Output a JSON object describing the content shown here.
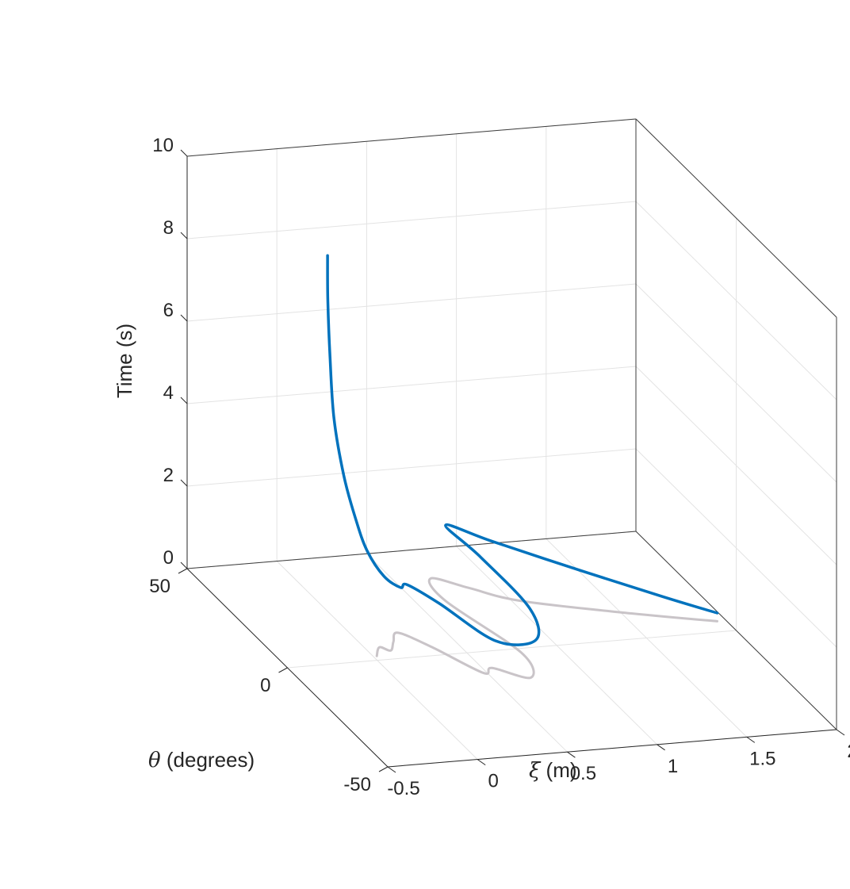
{
  "chart_data": {
    "type": "line",
    "projection": "3d",
    "title": "",
    "axes": {
      "x": {
        "label": "ξ (m)",
        "label_symbol": "ξ",
        "label_rest": " (m)",
        "range": [
          -0.5,
          2
        ],
        "ticks": [
          -0.5,
          0,
          0.5,
          1,
          1.5,
          2
        ],
        "tick_labels": [
          "-0.5",
          "0",
          "0.5",
          "1",
          "1.5",
          "2"
        ]
      },
      "y": {
        "label": "θ (degrees)",
        "label_symbol": "θ",
        "label_rest": " (degrees)",
        "range": [
          -50,
          50
        ],
        "ticks": [
          -50,
          0,
          50
        ],
        "tick_labels": [
          "-50",
          "0",
          "50"
        ]
      },
      "z": {
        "label": "Time (s)",
        "range": [
          0,
          10
        ],
        "ticks": [
          0,
          2,
          4,
          6,
          8,
          10
        ],
        "tick_labels": [
          "0",
          "2",
          "4",
          "6",
          "8",
          "10"
        ]
      }
    },
    "grid": true,
    "colors": {
      "trajectory": "#0072bd",
      "projection": "#c9c4c8",
      "axes": "#262626",
      "grid": "#e3e3e3",
      "box": "#3c3c3c"
    },
    "series": [
      {
        "kind": "trajectory",
        "points": [
          [
            1.95,
            5,
            0.2
          ],
          [
            1.7,
            10,
            0.45
          ],
          [
            1.35,
            18,
            0.8
          ],
          [
            0.95,
            28,
            1.2
          ],
          [
            0.75,
            33,
            1.42
          ],
          [
            0.8,
            20,
            1.25
          ],
          [
            0.85,
            0,
            0.95
          ],
          [
            0.75,
            -12,
            0.8
          ],
          [
            0.55,
            -10,
            0.75
          ],
          [
            0.4,
            5,
            1.0
          ],
          [
            0.3,
            12,
            1.15
          ],
          [
            0.22,
            8,
            1.3
          ],
          [
            0.15,
            10,
            1.5
          ],
          [
            0.1,
            14,
            1.95
          ],
          [
            0.08,
            18,
            2.55
          ],
          [
            0.06,
            22,
            3.4
          ],
          [
            0.05,
            26,
            4.6
          ],
          [
            0.05,
            28,
            6.0
          ],
          [
            0.06,
            30,
            7.3
          ],
          [
            0.07,
            31,
            8.3
          ]
        ]
      },
      {
        "kind": "floor-projection",
        "points": [
          [
            1.95,
            5,
            0
          ],
          [
            1.55,
            12,
            0
          ],
          [
            1.05,
            22,
            0
          ],
          [
            0.85,
            30,
            0
          ],
          [
            0.7,
            36,
            0
          ],
          [
            0.66,
            25,
            0
          ],
          [
            0.78,
            -2,
            0
          ],
          [
            0.7,
            -14,
            0
          ],
          [
            0.55,
            -8,
            0
          ],
          [
            0.48,
            -10,
            0
          ],
          [
            0.35,
            4,
            0
          ],
          [
            0.25,
            12,
            0
          ],
          [
            0.18,
            8,
            0
          ],
          [
            0.12,
            4,
            0
          ],
          [
            0.08,
            6,
            0
          ],
          [
            0.02,
            2,
            0
          ]
        ]
      }
    ]
  }
}
